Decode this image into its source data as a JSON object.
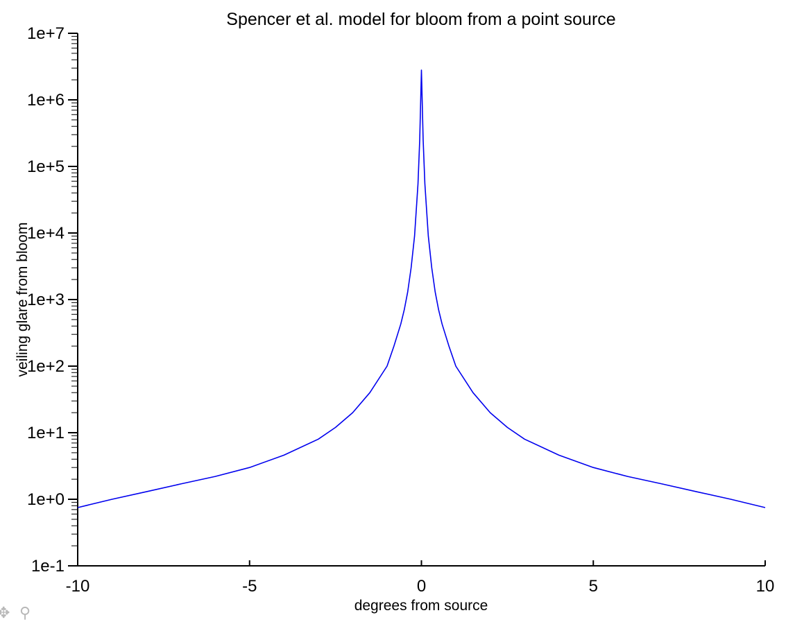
{
  "chart_data": {
    "type": "line",
    "title": "Spencer et al. model for bloom from a point source",
    "xlabel": "degrees from source",
    "ylabel": "veiling glare from bloom",
    "xlim": [
      -10,
      10
    ],
    "ylim": [
      0.1,
      10000000
    ],
    "yscale": "log",
    "grid": false,
    "x_ticks": [
      -10,
      -5,
      0,
      5,
      10
    ],
    "x_tick_labels": [
      "-10",
      "-5",
      "0",
      "5",
      "10"
    ],
    "y_ticks": [
      0.1,
      1,
      10,
      100,
      1000,
      10000,
      100000,
      1000000,
      10000000
    ],
    "y_tick_labels": [
      "1e-1",
      "1e+0",
      "1e+1",
      "1e+2",
      "1e+3",
      "1e+4",
      "1e+5",
      "1e+6",
      "1e+7"
    ],
    "series": [
      {
        "color": "#0000ee",
        "x": [
          -10,
          -9,
          -8,
          -7,
          -6,
          -5,
          -4,
          -3,
          -2.5,
          -2,
          -1.5,
          -1,
          -0.8,
          -0.6,
          -0.5,
          -0.4,
          -0.3,
          -0.2,
          -0.1,
          -0.05,
          0,
          0.05,
          0.1,
          0.2,
          0.3,
          0.4,
          0.5,
          0.6,
          0.8,
          1,
          1.5,
          2,
          2.5,
          3,
          4,
          5,
          6,
          7,
          8,
          9,
          10
        ],
        "y": [
          0.75,
          1.0,
          1.3,
          1.7,
          2.2,
          3.0,
          4.6,
          8.0,
          12,
          20,
          40,
          100,
          200,
          430,
          700,
          1300,
          3000,
          9000,
          55000,
          250000,
          2800000,
          250000,
          55000,
          9000,
          3000,
          1300,
          700,
          430,
          200,
          100,
          40,
          20,
          12,
          8.0,
          4.6,
          3.0,
          2.2,
          1.7,
          1.3,
          1.0,
          0.75
        ]
      }
    ]
  },
  "toolbar": {
    "pan_icon": "pan-arrows-icon",
    "zoom_icon": "zoom-magnifier-icon"
  }
}
